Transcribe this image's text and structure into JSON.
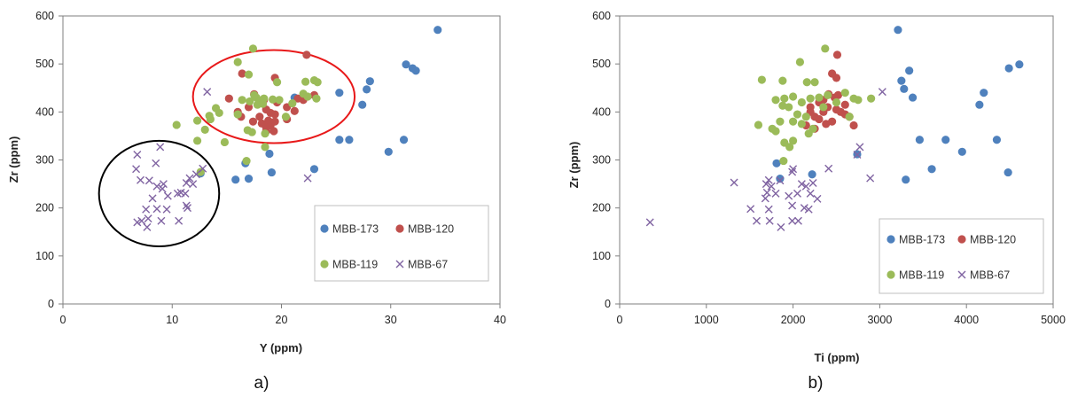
{
  "colors": {
    "MBB-173": "#4f81bd",
    "MBB-120": "#c0504d",
    "MBB-119": "#9bbb59",
    "MBB-67": "#8064a2",
    "ellipse_red": "#e8191a",
    "ellipse_black": "#000000"
  },
  "chart_data": [
    {
      "type": "scatter",
      "panel_label": "a)",
      "xlabel": "Y (ppm)",
      "ylabel": "Zr (ppm)",
      "xlim": [
        0,
        40
      ],
      "ylim": [
        0,
        600
      ],
      "xticks": [
        0,
        10,
        20,
        30,
        40
      ],
      "yticks": [
        0,
        100,
        200,
        300,
        400,
        500,
        600
      ],
      "grid": false,
      "legend_position": "bottom-right",
      "annotations": [
        {
          "shape": "ellipse",
          "color": "red",
          "center": [
            19.3,
            432
          ],
          "radii": [
            7.4,
            97
          ]
        },
        {
          "shape": "ellipse",
          "color": "black",
          "center": [
            8.8,
            230
          ],
          "radii": [
            5.5,
            110
          ]
        }
      ],
      "series": [
        {
          "name": "MBB-173",
          "marker": "circle",
          "points": [
            [
              34.3,
              571
            ],
            [
              31.4,
              499
            ],
            [
              32.0,
              491
            ],
            [
              32.3,
              486
            ],
            [
              28.1,
              464
            ],
            [
              27.8,
              447
            ],
            [
              25.3,
              440
            ],
            [
              21.2,
              430
            ],
            [
              22.0,
              428
            ],
            [
              27.4,
              415
            ],
            [
              25.3,
              342
            ],
            [
              26.2,
              342
            ],
            [
              31.2,
              342
            ],
            [
              29.8,
              317
            ],
            [
              18.9,
              313
            ],
            [
              23.0,
              281
            ],
            [
              19.1,
              274
            ],
            [
              12.6,
              272
            ],
            [
              16.7,
              293
            ],
            [
              15.8,
              259
            ],
            [
              17.0,
              261
            ]
          ]
        },
        {
          "name": "MBB-120",
          "marker": "circle",
          "points": [
            [
              22.3,
              519
            ],
            [
              16.4,
              480
            ],
            [
              19.4,
              471
            ],
            [
              17.5,
              437
            ],
            [
              18.4,
              425
            ],
            [
              15.2,
              428
            ],
            [
              19.6,
              420
            ],
            [
              22.0,
              425
            ],
            [
              23.0,
              435
            ],
            [
              18.6,
              405
            ],
            [
              19.0,
              398
            ],
            [
              19.4,
              395
            ],
            [
              18.0,
              390
            ],
            [
              18.8,
              382
            ],
            [
              18.2,
              376
            ],
            [
              19.0,
              372
            ],
            [
              19.4,
              380
            ],
            [
              20.5,
              410
            ],
            [
              21.2,
              402
            ],
            [
              17.0,
              410
            ],
            [
              16.0,
              400
            ],
            [
              16.3,
              390
            ],
            [
              17.4,
              380
            ],
            [
              20.5,
              385
            ],
            [
              19.3,
              360
            ],
            [
              18.6,
              360
            ],
            [
              21.5,
              428
            ],
            [
              18.6,
              368
            ]
          ]
        },
        {
          "name": "MBB-119",
          "marker": "circle",
          "points": [
            [
              17.4,
              532
            ],
            [
              16.0,
              504
            ],
            [
              17.0,
              478
            ],
            [
              23.0,
              466
            ],
            [
              23.3,
              462
            ],
            [
              22.2,
              463
            ],
            [
              19.6,
              462
            ],
            [
              17.5,
              435
            ],
            [
              17.7,
              430
            ],
            [
              18.0,
              422
            ],
            [
              18.4,
              428
            ],
            [
              17.1,
              422
            ],
            [
              19.2,
              426
            ],
            [
              19.8,
              425
            ],
            [
              22.0,
              438
            ],
            [
              23.2,
              428
            ],
            [
              22.4,
              432
            ],
            [
              14.0,
              408
            ],
            [
              14.3,
              398
            ],
            [
              13.4,
              392
            ],
            [
              13.5,
              385
            ],
            [
              12.3,
              382
            ],
            [
              16.0,
              395
            ],
            [
              16.4,
              425
            ],
            [
              13.0,
              363
            ],
            [
              10.4,
              373
            ],
            [
              16.9,
              362
            ],
            [
              17.3,
              358
            ],
            [
              18.5,
              355
            ],
            [
              18.5,
              327
            ],
            [
              14.8,
              337
            ],
            [
              12.3,
              340
            ],
            [
              12.6,
              275
            ],
            [
              16.8,
              298
            ],
            [
              20.4,
              390
            ],
            [
              21.0,
              418
            ],
            [
              17.8,
              415
            ],
            [
              18.3,
              417
            ]
          ]
        },
        {
          "name": "MBB-67",
          "marker": "x",
          "points": [
            [
              13.2,
              442
            ],
            [
              22.4,
              262
            ],
            [
              8.9,
              327
            ],
            [
              6.8,
              311
            ],
            [
              8.5,
              293
            ],
            [
              6.7,
              281
            ],
            [
              12.8,
              282
            ],
            [
              12.2,
              270
            ],
            [
              11.6,
              262
            ],
            [
              7.1,
              258
            ],
            [
              7.9,
              257
            ],
            [
              11.3,
              252
            ],
            [
              9.2,
              250
            ],
            [
              8.6,
              245
            ],
            [
              9.1,
              240
            ],
            [
              11.9,
              250
            ],
            [
              10.8,
              232
            ],
            [
              11.2,
              230
            ],
            [
              9.6,
              225
            ],
            [
              10.5,
              230
            ],
            [
              8.2,
              220
            ],
            [
              11.3,
              205
            ],
            [
              11.4,
              200
            ],
            [
              7.6,
              197
            ],
            [
              8.6,
              198
            ],
            [
              9.5,
              197
            ],
            [
              7.8,
              178
            ],
            [
              6.8,
              170
            ],
            [
              7.2,
              173
            ],
            [
              9.0,
              173
            ],
            [
              10.6,
              173
            ],
            [
              7.7,
              160
            ]
          ]
        }
      ]
    },
    {
      "type": "scatter",
      "panel_label": "b)",
      "xlabel": "Ti (ppm)",
      "ylabel": "Zr (ppm)",
      "xlim": [
        0,
        5000
      ],
      "ylim": [
        0,
        600
      ],
      "xticks": [
        0,
        1000,
        2000,
        3000,
        4000,
        5000
      ],
      "yticks": [
        0,
        100,
        200,
        300,
        400,
        500,
        600
      ],
      "grid": false,
      "legend_position": "bottom-right",
      "series": [
        {
          "name": "MBB-173",
          "marker": "circle",
          "points": [
            [
              3210,
              571
            ],
            [
              4610,
              499
            ],
            [
              4490,
              491
            ],
            [
              3340,
              486
            ],
            [
              3250,
              465
            ],
            [
              4200,
              440
            ],
            [
              3280,
              448
            ],
            [
              3380,
              430
            ],
            [
              4150,
              415
            ],
            [
              2740,
              312
            ],
            [
              3460,
              342
            ],
            [
              3760,
              342
            ],
            [
              4350,
              342
            ],
            [
              3950,
              317
            ],
            [
              3600,
              281
            ],
            [
              3300,
              259
            ],
            [
              4480,
              274
            ],
            [
              2220,
              270
            ],
            [
              1810,
              293
            ],
            [
              1850,
              261
            ]
          ]
        },
        {
          "name": "MBB-120",
          "marker": "circle",
          "points": [
            [
              2510,
              519
            ],
            [
              2450,
              480
            ],
            [
              2500,
              471
            ],
            [
              2410,
              437
            ],
            [
              2520,
              435
            ],
            [
              2350,
              425
            ],
            [
              2300,
              420
            ],
            [
              2400,
              410
            ],
            [
              2500,
              405
            ],
            [
              2550,
              400
            ],
            [
              2600,
              395
            ],
            [
              2200,
              400
            ],
            [
              2250,
              390
            ],
            [
              2300,
              385
            ],
            [
              2450,
              380
            ],
            [
              2380,
              375
            ],
            [
              2150,
              372
            ],
            [
              2250,
              365
            ],
            [
              2600,
              415
            ],
            [
              2650,
              390
            ],
            [
              2700,
              372
            ],
            [
              2200,
              410
            ],
            [
              2350,
              400
            ],
            [
              2480,
              430
            ]
          ]
        },
        {
          "name": "MBB-119",
          "marker": "circle",
          "points": [
            [
              2370,
              532
            ],
            [
              2080,
              504
            ],
            [
              1640,
              467
            ],
            [
              1880,
              465
            ],
            [
              2160,
              462
            ],
            [
              2250,
              462
            ],
            [
              2100,
              420
            ],
            [
              2000,
              432
            ],
            [
              1900,
              428
            ],
            [
              1800,
              425
            ],
            [
              2200,
              428
            ],
            [
              2300,
              430
            ],
            [
              2400,
              435
            ],
            [
              2600,
              440
            ],
            [
              2700,
              428
            ],
            [
              2900,
              428
            ],
            [
              2750,
              425
            ],
            [
              1950,
              410
            ],
            [
              1880,
              413
            ],
            [
              2050,
              395
            ],
            [
              2150,
              390
            ],
            [
              2000,
              380
            ],
            [
              1850,
              380
            ],
            [
              2100,
              375
            ],
            [
              1600,
              373
            ],
            [
              1760,
              365
            ],
            [
              1800,
              360
            ],
            [
              2230,
              365
            ],
            [
              2180,
              355
            ],
            [
              2000,
              340
            ],
            [
              1960,
              327
            ],
            [
              1900,
              336
            ],
            [
              1890,
              298
            ],
            [
              2650,
              390
            ],
            [
              2350,
              410
            ],
            [
              2500,
              420
            ]
          ]
        },
        {
          "name": "MBB-67",
          "marker": "x",
          "points": [
            [
              3030,
              442
            ],
            [
              2890,
              262
            ],
            [
              2770,
              327
            ],
            [
              2740,
              311
            ],
            [
              2410,
              282
            ],
            [
              2000,
              281
            ],
            [
              1990,
              275
            ],
            [
              1720,
              258
            ],
            [
              1690,
              250
            ],
            [
              1850,
              257
            ],
            [
              2230,
              252
            ],
            [
              2150,
              245
            ],
            [
              2100,
              250
            ],
            [
              1750,
              245
            ],
            [
              1700,
              232
            ],
            [
              1800,
              230
            ],
            [
              1950,
              225
            ],
            [
              2050,
              230
            ],
            [
              2200,
              230
            ],
            [
              1680,
              220
            ],
            [
              2280,
              219
            ],
            [
              2130,
              200
            ],
            [
              1990,
              205
            ],
            [
              1510,
              198
            ],
            [
              2180,
              197
            ],
            [
              1720,
              197
            ],
            [
              1320,
              253
            ],
            [
              1580,
              173
            ],
            [
              1990,
              173
            ],
            [
              2060,
              173
            ],
            [
              1730,
              173
            ],
            [
              1860,
              160
            ],
            [
              350,
              170
            ]
          ]
        }
      ]
    }
  ]
}
